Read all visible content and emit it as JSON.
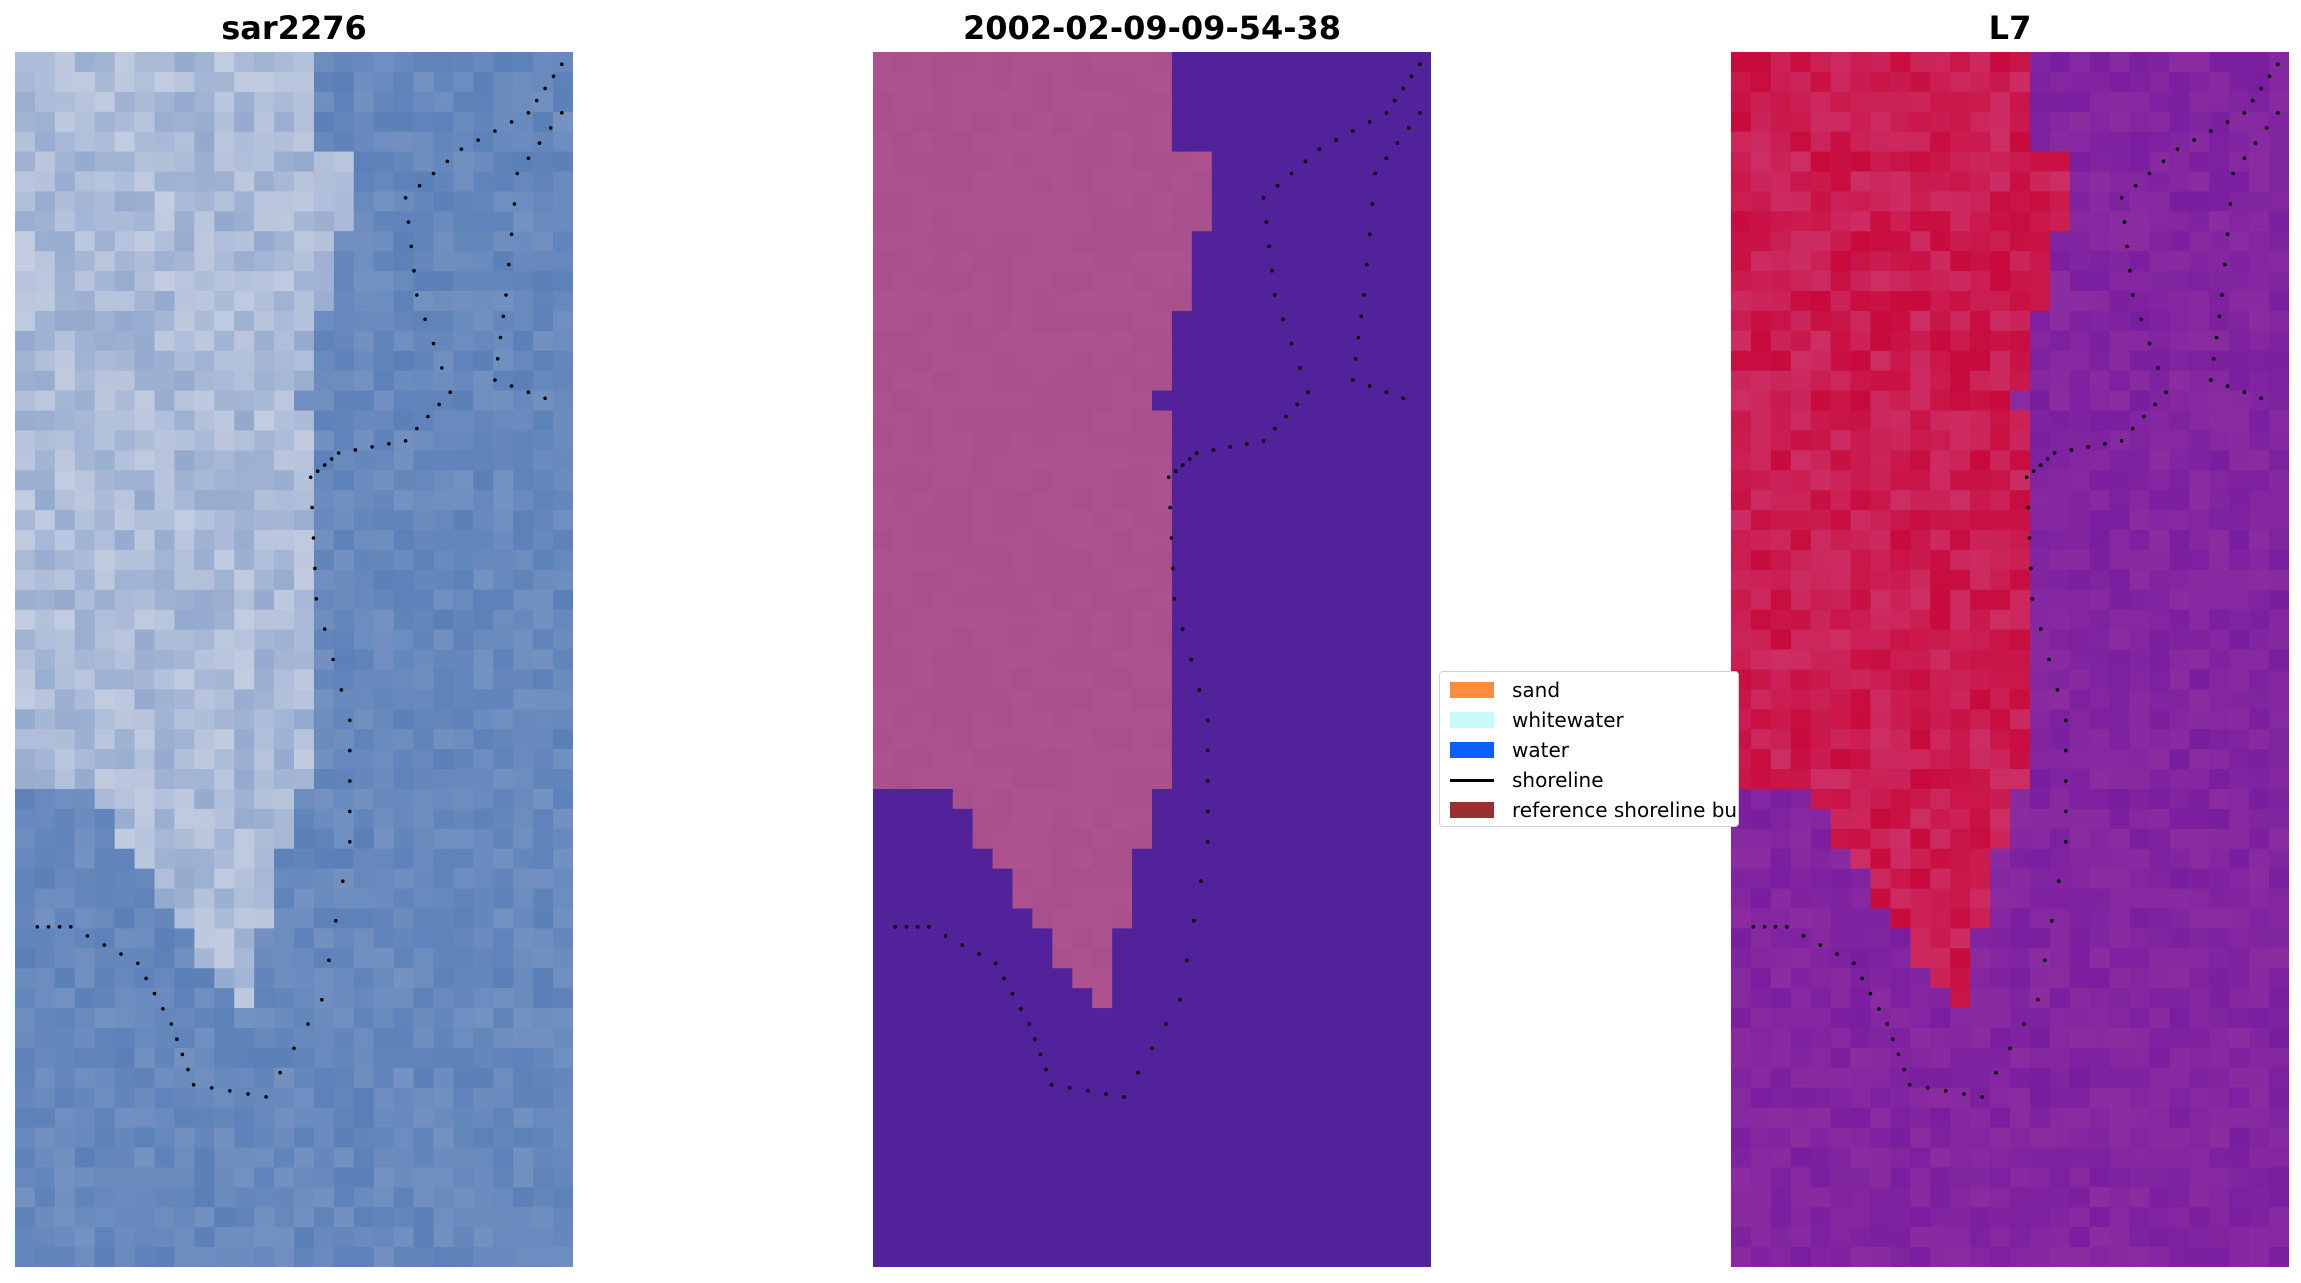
{
  "panels": [
    {
      "title": "sar2276"
    },
    {
      "title": "2002-02-09-09-54-38"
    },
    {
      "title": "L7"
    }
  ],
  "legend": {
    "items": [
      {
        "label": "sand",
        "kind": "patch",
        "color": "#ff8c3c"
      },
      {
        "label": "whitewater",
        "kind": "patch",
        "color": "#c8fafa"
      },
      {
        "label": "water",
        "kind": "patch",
        "color": "#0a5fff"
      },
      {
        "label": "shoreline",
        "kind": "line",
        "color": "#000000"
      },
      {
        "label": "reference shoreline bu",
        "kind": "patch",
        "color": "#9b2f2f"
      }
    ]
  },
  "colors": {
    "sar_sand": "#e6e6ee",
    "sar_water": "#5b80b8",
    "classified_sand": "#a8508c",
    "classified_water": "#52229a",
    "l7_sand": "#c80a3c",
    "l7_water": "#7a1ea0",
    "shoreline": "#000000"
  }
}
